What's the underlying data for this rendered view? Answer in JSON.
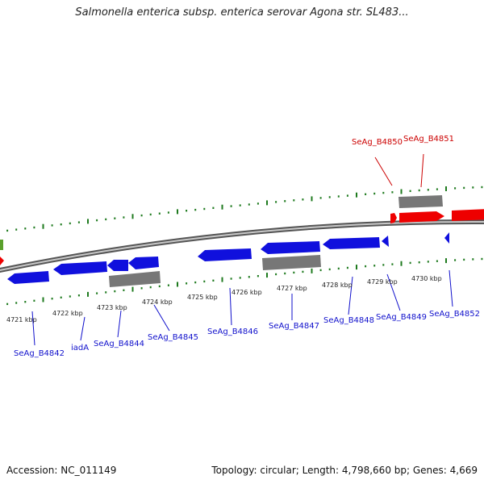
{
  "title": "Salmonella enterica subsp. enterica serovar Agona str. SL483...",
  "footer": {
    "accession": "Accession: NC_011149",
    "summary": "Topology: circular; Length: 4,798,660 bp; Genes: 4,669"
  },
  "colors": {
    "forward_gene": "#ee0000",
    "reverse_gene": "#1010dd",
    "pseudo_gene": "#777777",
    "gc_tick": "#1e7a1e",
    "backbone": "#8a8a8a",
    "label_forward": "#cc0000",
    "label_reverse": "#1010cc"
  },
  "tick_labels": [
    "4721 kbp",
    "4722 kbp",
    "4723 kbp",
    "4724 kbp",
    "4725 kbp",
    "4726 kbp",
    "4727 kbp",
    "4728 kbp",
    "4729 kbp",
    "4730 kbp"
  ],
  "gene_labels_forward": [
    "SeAg_B4850",
    "SeAg_B4851"
  ],
  "gene_labels_reverse": [
    "SeAg_B4842",
    "iadA",
    "SeAg_B4844",
    "SeAg_B4845",
    "SeAg_B4846",
    "SeAg_B4847",
    "SeAg_B4848",
    "SeAg_B4849",
    "SeAg_B4852"
  ]
}
